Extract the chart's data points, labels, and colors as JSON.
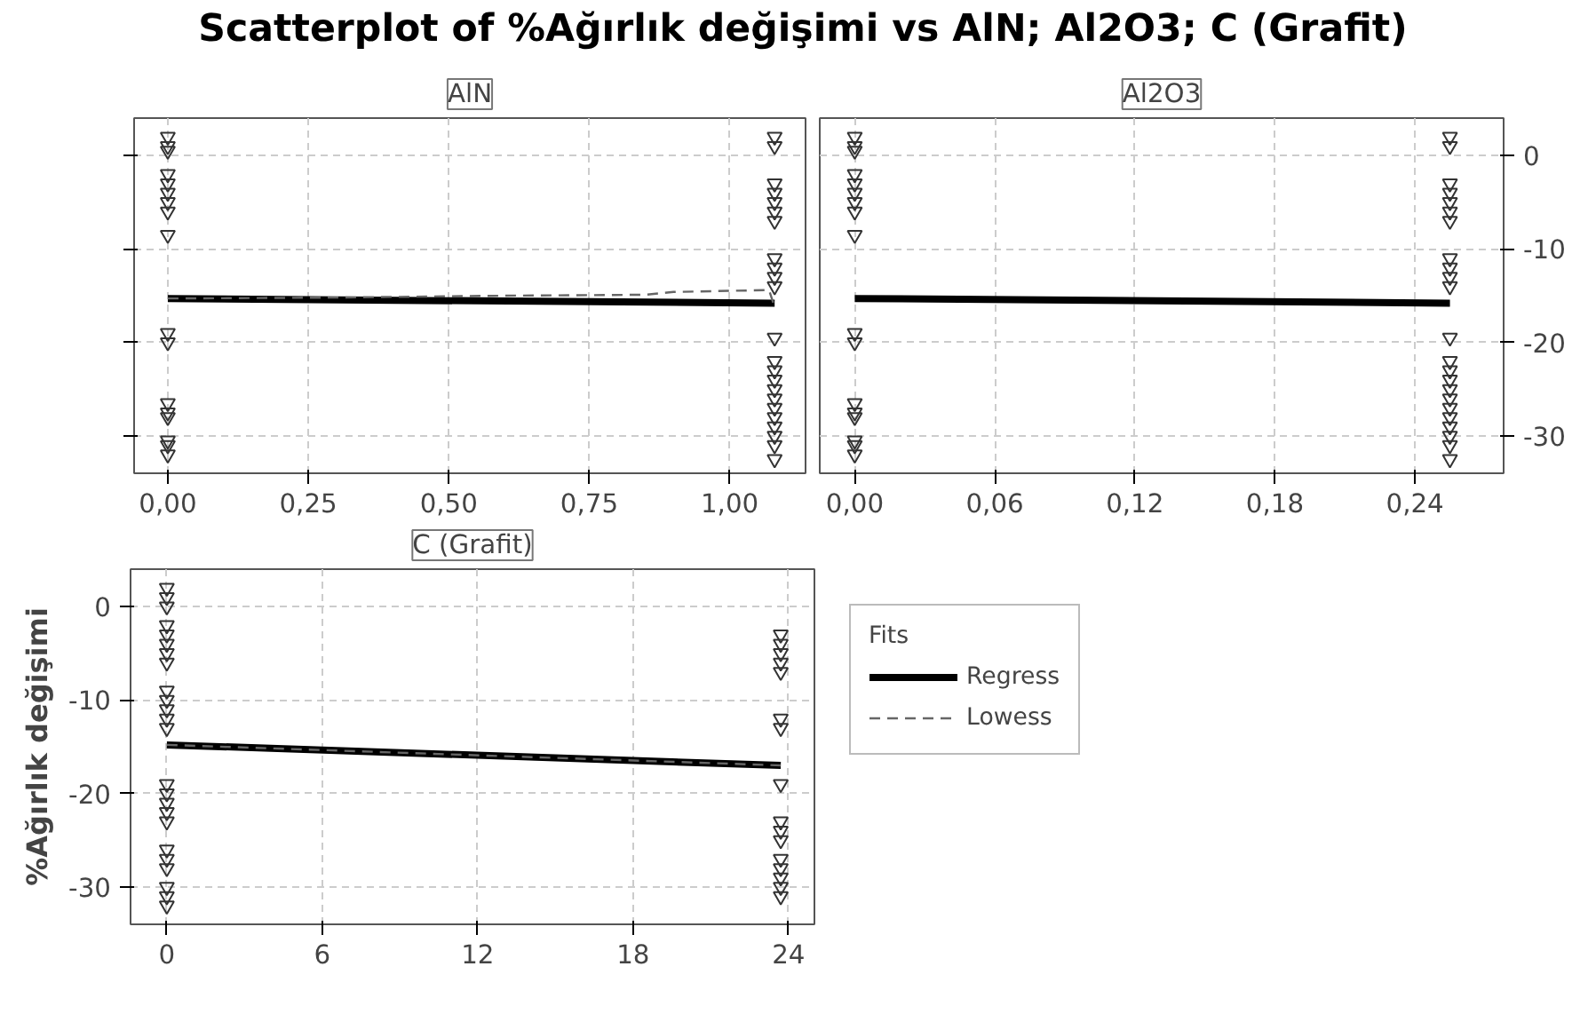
{
  "chart_data": [
    {
      "type": "scatter",
      "title": "Scatterplot of %Ağırlık değişimi vs AlN; Al2O3; C (Grafit)",
      "subtitle": "AlN",
      "xlim": [
        -0.06,
        1.135
      ],
      "xticks": [
        {
          "value": 0,
          "label": "0,00"
        },
        {
          "value": 0.25,
          "label": "0,25"
        },
        {
          "value": 0.5,
          "label": "0,50"
        },
        {
          "value": 0.75,
          "label": "0,75"
        },
        {
          "value": 1,
          "label": "1,00"
        }
      ],
      "ylim": [
        -34,
        4
      ],
      "yticks": [
        0,
        -10,
        -20,
        -30
      ],
      "tick_labels": "x",
      "grid": true,
      "series": [
        {
          "marker": "triangle",
          "color": "#333333",
          "x": [
            0,
            0,
            0,
            0,
            0,
            0,
            0,
            0,
            0,
            0,
            0,
            0,
            0,
            0,
            0,
            0,
            0,
            1.08,
            1.08,
            1.08,
            1.08,
            1.08,
            1.08,
            1.08,
            1.08,
            1.08,
            1.08,
            1.08,
            1.08,
            1.08,
            1.08,
            1.08,
            1.08,
            1.08,
            1.08,
            1.08,
            1.08,
            1.08,
            1.08,
            1.08
          ],
          "values": [
            2,
            1,
            0.5,
            -2,
            -3,
            -4,
            -5,
            -6,
            -8.5,
            -19,
            -20,
            -26.5,
            -27.5,
            -28,
            -30.5,
            -31,
            -32,
            2,
            1,
            -3,
            -4,
            -5,
            -6,
            -7,
            -11,
            -12,
            -13,
            -14,
            -19.5,
            -22,
            -23,
            -24,
            -25,
            -26,
            -27,
            -28,
            -29,
            -30,
            -31,
            -32.5
          ]
        },
        {
          "type": "line",
          "color": "#000000",
          "x": [
            0,
            1.08
          ],
          "values": [
            -15.3,
            -15.8
          ]
        },
        {
          "type": "line",
          "line_style": "dashed",
          "color": "#666666",
          "x": [
            0,
            0.3,
            0.6,
            0.85,
            0.9,
            1.07,
            1.08
          ],
          "values": [
            -15.3,
            -15.2,
            -15.0,
            -14.9,
            -14.6,
            -14.4,
            -16.2
          ]
        }
      ]
    },
    {
      "type": "scatter",
      "subtitle": "Al2O3",
      "xlim": [
        -0.015,
        0.278
      ],
      "xticks": [
        {
          "value": 0,
          "label": "0,00"
        },
        {
          "value": 0.06,
          "label": "0,06"
        },
        {
          "value": 0.12,
          "label": "0,12"
        },
        {
          "value": 0.18,
          "label": "0,18"
        },
        {
          "value": 0.24,
          "label": "0,24"
        }
      ],
      "ylim": [
        -34,
        4
      ],
      "yticks": [
        0,
        -10,
        -20,
        -30
      ],
      "grid": true,
      "series": [
        {
          "marker": "triangle",
          "color": "#333333",
          "x": [
            0,
            0,
            0,
            0,
            0,
            0,
            0,
            0,
            0,
            0,
            0,
            0,
            0,
            0,
            0,
            0,
            0,
            0.255,
            0.255,
            0.255,
            0.255,
            0.255,
            0.255,
            0.255,
            0.255,
            0.255,
            0.255,
            0.255,
            0.255,
            0.255,
            0.255,
            0.255,
            0.255,
            0.255,
            0.255,
            0.255,
            0.255,
            0.255,
            0.255,
            0.255
          ],
          "values": [
            2,
            1,
            0.5,
            -2,
            -3,
            -4,
            -5,
            -6,
            -8.5,
            -19,
            -20,
            -26.5,
            -27.5,
            -28,
            -30.5,
            -31,
            -32,
            2,
            1,
            -3,
            -4,
            -5,
            -6,
            -7,
            -11,
            -12,
            -13,
            -14,
            -19.5,
            -22,
            -23,
            -24,
            -25,
            -26,
            -27,
            -28,
            -29,
            -30,
            -31,
            -32.5
          ]
        },
        {
          "type": "line",
          "color": "#000000",
          "x": [
            0,
            0.255
          ],
          "values": [
            -15.3,
            -15.8
          ]
        }
      ]
    },
    {
      "type": "scatter",
      "subtitle": "C (Grafit)",
      "ylabel": "%Ağırlık değişimi",
      "xlim": [
        -1.4,
        25
      ],
      "xticks": [
        0,
        6,
        12,
        18,
        24
      ],
      "ylim": [
        -34,
        4
      ],
      "yticks": [
        0,
        -10,
        -20,
        -30
      ],
      "grid": true,
      "legend": "right",
      "legend_title": "Fits",
      "series": [
        {
          "marker": "triangle",
          "color": "#333333",
          "x": [
            0,
            0,
            0,
            0,
            0,
            0,
            0,
            0,
            0,
            0,
            0,
            0,
            0,
            0,
            0,
            0,
            0,
            0,
            0,
            0,
            0,
            0,
            0,
            0,
            23.7,
            23.7,
            23.7,
            23.7,
            23.7,
            23.7,
            23.7,
            23.7,
            23.7,
            23.7,
            23.7,
            23.7,
            23.7,
            23.7,
            23.7,
            23.7
          ],
          "values": [
            2,
            1,
            0,
            -2,
            -3,
            -4,
            -5,
            -6,
            -9,
            -10,
            -11,
            -12,
            -13,
            -19,
            -20,
            -21,
            -22,
            -23,
            -26,
            -27,
            -28,
            -30,
            -31,
            -32,
            -3,
            -4,
            -5,
            -6,
            -7,
            -12,
            -13,
            -19,
            -23,
            -24,
            -25,
            -27,
            -28,
            -29,
            -30,
            -31
          ]
        },
        {
          "name": "Regress",
          "type": "line",
          "color": "#000000",
          "x": [
            0,
            23.7
          ],
          "values": [
            -14.8,
            -17.0
          ]
        },
        {
          "name": "Lowess",
          "type": "line",
          "line_style": "dashed",
          "color": "#666666",
          "x": [
            0,
            23.7
          ],
          "values": [
            -14.8,
            -17.0
          ]
        }
      ]
    }
  ]
}
